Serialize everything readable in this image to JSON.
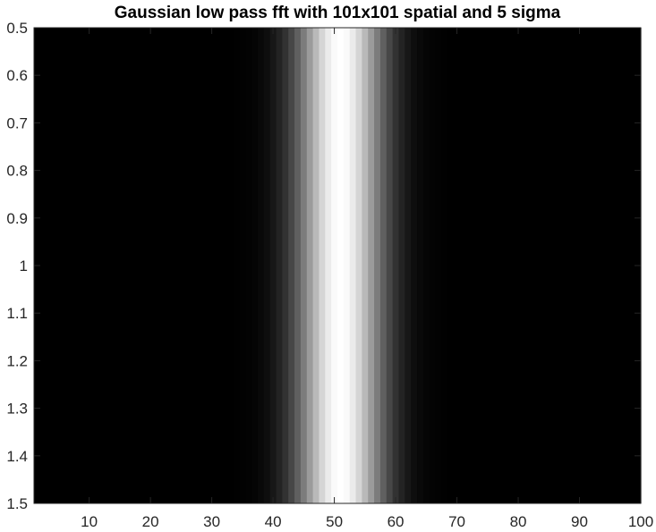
{
  "chart_data": {
    "type": "heatmap",
    "title": "Gaussian low pass fft with 101x101 spatial and 5 sigma",
    "xlabel": "",
    "ylabel": "",
    "colormap": "gray",
    "x": {
      "min": 1,
      "max": 100,
      "ticks": [
        10,
        20,
        30,
        40,
        50,
        60,
        70,
        80,
        90,
        100
      ],
      "tick_labels": [
        "10",
        "20",
        "30",
        "40",
        "50",
        "60",
        "70",
        "80",
        "90",
        "100"
      ]
    },
    "y": {
      "min": 0.5,
      "max": 1.5,
      "reversed": true,
      "ticks": [
        0.5,
        0.6,
        0.7,
        0.8,
        0.9,
        1.0,
        1.1,
        1.2,
        1.3,
        1.4,
        1.5
      ],
      "tick_labels": [
        "0.5",
        "0.6",
        "0.7",
        "0.8",
        "0.9",
        "1",
        "1.1",
        "1.2",
        "1.3",
        "1.4",
        "1.5"
      ]
    },
    "profile": {
      "function": "gaussian",
      "peak_column": 51,
      "sigma_columns": 5,
      "column_range": [
        1,
        101
      ]
    },
    "grid": false,
    "legend": "none"
  }
}
